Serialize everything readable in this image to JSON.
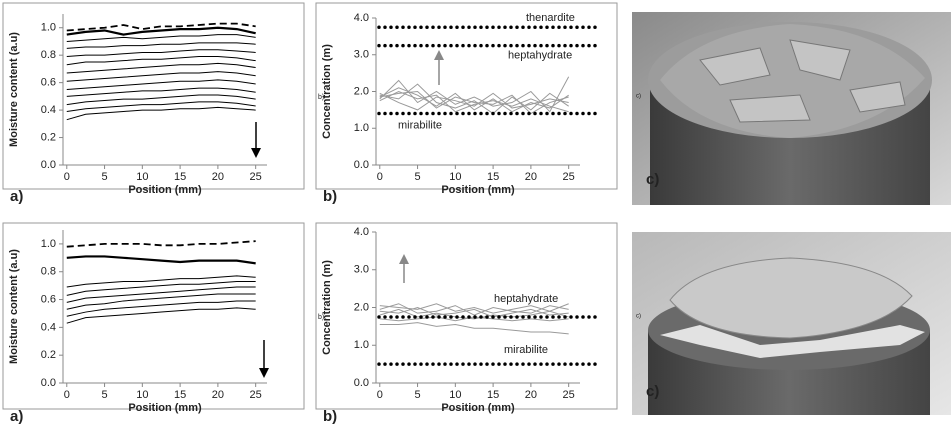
{
  "chart_data": [
    {
      "type": "line",
      "panel_label": "a)",
      "ylabel": "Moisture content (a.u)",
      "xlabel": "Position (mm)",
      "x": [
        0,
        2.5,
        5,
        7.5,
        10,
        12.5,
        15,
        17.5,
        20,
        22.5,
        25
      ],
      "xlim": [
        -0.5,
        26.5
      ],
      "xticks": [
        0,
        5,
        10,
        15,
        20,
        25
      ],
      "ylim": [
        0,
        1.1
      ],
      "yticks": [
        {
          "value": 0,
          "label": "0.0"
        },
        0.2,
        0.4,
        0.6,
        0.8,
        {
          "value": 1,
          "label": "1.0"
        }
      ],
      "series": [
        {
          "color": "#000000",
          "style": "dashed",
          "values": [
            0.98,
            0.99,
            1.0,
            1.02,
            0.99,
            1.01,
            1.01,
            1.02,
            1.03,
            1.03,
            1.01
          ]
        },
        {
          "color": "#000000",
          "style": "bold",
          "values": [
            0.95,
            0.97,
            0.98,
            0.95,
            0.97,
            0.98,
            0.99,
            0.99,
            1.0,
            0.99,
            0.96
          ]
        },
        {
          "color": "#000000",
          "style": "solid",
          "values": [
            0.9,
            0.91,
            0.92,
            0.93,
            0.92,
            0.93,
            0.94,
            0.94,
            0.95,
            0.95,
            0.93
          ]
        },
        {
          "color": "#000000",
          "style": "solid",
          "values": [
            0.85,
            0.86,
            0.86,
            0.87,
            0.87,
            0.88,
            0.88,
            0.89,
            0.89,
            0.89,
            0.88
          ]
        },
        {
          "color": "#000000",
          "style": "solid",
          "values": [
            0.79,
            0.8,
            0.8,
            0.81,
            0.82,
            0.82,
            0.83,
            0.84,
            0.84,
            0.83,
            0.82
          ]
        },
        {
          "color": "#000000",
          "style": "solid",
          "values": [
            0.73,
            0.75,
            0.75,
            0.76,
            0.77,
            0.77,
            0.78,
            0.79,
            0.79,
            0.78,
            0.76
          ]
        },
        {
          "color": "#000000",
          "style": "solid",
          "values": [
            0.67,
            0.68,
            0.69,
            0.7,
            0.71,
            0.72,
            0.73,
            0.73,
            0.74,
            0.73,
            0.71
          ]
        },
        {
          "color": "#000000",
          "style": "solid",
          "values": [
            0.61,
            0.62,
            0.63,
            0.64,
            0.65,
            0.66,
            0.67,
            0.67,
            0.68,
            0.67,
            0.65
          ]
        },
        {
          "color": "#000000",
          "style": "solid",
          "values": [
            0.55,
            0.56,
            0.57,
            0.58,
            0.59,
            0.6,
            0.61,
            0.61,
            0.62,
            0.61,
            0.59
          ]
        },
        {
          "color": "#000000",
          "style": "solid",
          "values": [
            0.5,
            0.51,
            0.52,
            0.53,
            0.54,
            0.54,
            0.55,
            0.56,
            0.56,
            0.55,
            0.53
          ]
        },
        {
          "color": "#000000",
          "style": "solid",
          "values": [
            0.44,
            0.46,
            0.47,
            0.48,
            0.48,
            0.49,
            0.5,
            0.51,
            0.51,
            0.5,
            0.48
          ]
        },
        {
          "color": "#000000",
          "style": "solid",
          "values": [
            0.39,
            0.41,
            0.42,
            0.43,
            0.44,
            0.44,
            0.45,
            0.46,
            0.46,
            0.45,
            0.43
          ]
        },
        {
          "color": "#000000",
          "style": "solid",
          "values": [
            0.33,
            0.37,
            0.38,
            0.39,
            0.4,
            0.4,
            0.41,
            0.41,
            0.42,
            0.41,
            0.4
          ]
        }
      ]
    },
    {
      "type": "line",
      "panel_label": "b)",
      "inset_label": "b)",
      "ylabel": "Concentration (m)",
      "xlabel": "Position (mm)",
      "x": [
        0,
        2.5,
        5,
        7.5,
        10,
        12.5,
        15,
        17.5,
        20,
        22.5,
        25
      ],
      "xlim": [
        -0.5,
        26.5
      ],
      "xticks": [
        0,
        5,
        10,
        15,
        20,
        25
      ],
      "ylim": [
        0,
        4
      ],
      "yticks": [
        {
          "value": 0,
          "label": "0.0"
        },
        {
          "value": 1,
          "label": "1.0"
        },
        {
          "value": 2,
          "label": "2.0"
        },
        {
          "value": 3,
          "label": "3.0"
        },
        {
          "value": 4,
          "label": "4.0"
        }
      ],
      "reference_lines": [
        {
          "value": 3.75,
          "label": "thenardite"
        },
        {
          "value": 3.25,
          "label": "heptahydrate"
        },
        {
          "value": 1.4,
          "label": "mirabilite"
        }
      ],
      "series": [
        {
          "color": "#9a9a9a",
          "style": "solid",
          "values": [
            1.85,
            2.1,
            1.9,
            1.6,
            1.95,
            1.5,
            1.8,
            1.45,
            1.7,
            1.55,
            1.9
          ]
        },
        {
          "color": "#9a9a9a",
          "style": "solid",
          "values": [
            1.9,
            1.8,
            2.2,
            1.7,
            1.55,
            1.75,
            1.4,
            1.85,
            1.5,
            1.95,
            1.6
          ]
        },
        {
          "color": "#9a9a9a",
          "style": "solid",
          "values": [
            1.8,
            2.3,
            1.7,
            2.0,
            1.65,
            1.85,
            1.6,
            1.7,
            2.0,
            1.45,
            2.4
          ]
        },
        {
          "color": "#9a9a9a",
          "style": "solid",
          "values": [
            1.95,
            1.7,
            1.5,
            1.85,
            1.75,
            1.6,
            1.95,
            1.55,
            1.65,
            1.8,
            1.7
          ]
        },
        {
          "color": "#9a9a9a",
          "style": "solid",
          "values": [
            1.85,
            1.95,
            2.0,
            1.55,
            1.85,
            1.7,
            1.65,
            1.9,
            1.4,
            1.7,
            1.85
          ]
        },
        {
          "color": "#9a9a9a",
          "style": "solid",
          "values": [
            1.75,
            2.0,
            1.8,
            1.9,
            1.45,
            1.65,
            1.75,
            1.6,
            1.8,
            1.6,
            1.45
          ]
        }
      ]
    },
    {
      "type": "line",
      "panel_label": "a)",
      "ylabel": "Moisture content (a.u)",
      "xlabel": "Position (mm)",
      "x": [
        0,
        2.5,
        5,
        7.5,
        10,
        12.5,
        15,
        17.5,
        20,
        22.5,
        25
      ],
      "xlim": [
        -0.5,
        26.5
      ],
      "xticks": [
        0,
        5,
        10,
        15,
        20,
        25
      ],
      "ylim": [
        0,
        1.1
      ],
      "yticks": [
        {
          "value": 0,
          "label": "0.0"
        },
        0.2,
        0.4,
        0.6,
        0.8,
        {
          "value": 1,
          "label": "1.0"
        }
      ],
      "series": [
        {
          "color": "#000000",
          "style": "dashed",
          "values": [
            0.98,
            0.99,
            1.0,
            1.0,
            1.0,
            0.99,
            0.99,
            1.0,
            1.0,
            1.01,
            1.02
          ]
        },
        {
          "color": "#000000",
          "style": "bold",
          "values": [
            0.9,
            0.91,
            0.91,
            0.9,
            0.89,
            0.88,
            0.87,
            0.88,
            0.88,
            0.88,
            0.86
          ]
        },
        {
          "color": "#000000",
          "style": "solid",
          "values": [
            0.69,
            0.71,
            0.72,
            0.73,
            0.73,
            0.74,
            0.75,
            0.75,
            0.76,
            0.77,
            0.76
          ]
        },
        {
          "color": "#000000",
          "style": "solid",
          "values": [
            0.63,
            0.66,
            0.67,
            0.68,
            0.69,
            0.7,
            0.71,
            0.71,
            0.72,
            0.73,
            0.73
          ]
        },
        {
          "color": "#000000",
          "style": "solid",
          "values": [
            0.58,
            0.61,
            0.62,
            0.63,
            0.64,
            0.65,
            0.66,
            0.67,
            0.68,
            0.69,
            0.69
          ]
        },
        {
          "color": "#000000",
          "style": "solid",
          "values": [
            0.53,
            0.56,
            0.57,
            0.59,
            0.6,
            0.61,
            0.62,
            0.63,
            0.64,
            0.64,
            0.64
          ]
        },
        {
          "color": "#000000",
          "style": "solid",
          "values": [
            0.48,
            0.51,
            0.53,
            0.54,
            0.55,
            0.56,
            0.57,
            0.58,
            0.58,
            0.59,
            0.59
          ]
        },
        {
          "color": "#000000",
          "style": "solid",
          "values": [
            0.43,
            0.47,
            0.48,
            0.49,
            0.5,
            0.51,
            0.52,
            0.53,
            0.53,
            0.54,
            0.53
          ]
        }
      ]
    },
    {
      "type": "line",
      "panel_label": "b)",
      "inset_label": "b)",
      "ylabel": "Concentration (m)",
      "xlabel": "Position (mm)",
      "x": [
        0,
        2.5,
        5,
        7.5,
        10,
        12.5,
        15,
        17.5,
        20,
        22.5,
        25
      ],
      "xlim": [
        -0.5,
        26.5
      ],
      "xticks": [
        0,
        5,
        10,
        15,
        20,
        25
      ],
      "ylim": [
        0,
        4
      ],
      "yticks": [
        {
          "value": 0,
          "label": "0.0"
        },
        {
          "value": 1,
          "label": "1.0"
        },
        {
          "value": 2,
          "label": "2.0"
        },
        {
          "value": 3,
          "label": "3.0"
        },
        {
          "value": 4,
          "label": "4.0"
        }
      ],
      "reference_lines": [
        {
          "value": 1.75,
          "label": "heptahydrate"
        },
        {
          "value": 0.5,
          "label": "mirabilite"
        }
      ],
      "series": [
        {
          "color": "#9a9a9a",
          "style": "solid",
          "values": [
            2.05,
            2.0,
            1.95,
            2.1,
            1.9,
            2.0,
            1.85,
            1.95,
            2.05,
            1.9,
            2.1
          ]
        },
        {
          "color": "#9a9a9a",
          "style": "solid",
          "values": [
            1.95,
            2.1,
            1.85,
            1.9,
            2.05,
            1.8,
            2.0,
            1.9,
            1.85,
            2.05,
            1.95
          ]
        },
        {
          "color": "#9a9a9a",
          "style": "solid",
          "values": [
            1.9,
            1.85,
            2.0,
            1.8,
            1.85,
            1.95,
            1.75,
            1.85,
            1.95,
            1.8,
            1.85
          ]
        },
        {
          "color": "#9a9a9a",
          "style": "solid",
          "values": [
            1.8,
            1.95,
            1.75,
            1.85,
            1.75,
            1.7,
            1.8,
            1.75,
            1.8,
            1.9,
            1.75
          ]
        },
        {
          "color": "#9a9a9a",
          "style": "solid",
          "values": [
            1.7,
            1.65,
            1.7,
            1.75,
            1.65,
            1.75,
            1.7,
            1.65,
            1.7,
            1.65,
            1.7
          ]
        },
        {
          "color": "#9a9a9a",
          "style": "solid",
          "values": [
            1.55,
            1.55,
            1.6,
            1.5,
            1.55,
            1.45,
            1.45,
            1.4,
            1.35,
            1.35,
            1.3
          ]
        }
      ]
    }
  ],
  "photos": [
    {
      "label": "c)",
      "inset_label": "c)"
    },
    {
      "label": "c)",
      "inset_label": "c)"
    }
  ]
}
